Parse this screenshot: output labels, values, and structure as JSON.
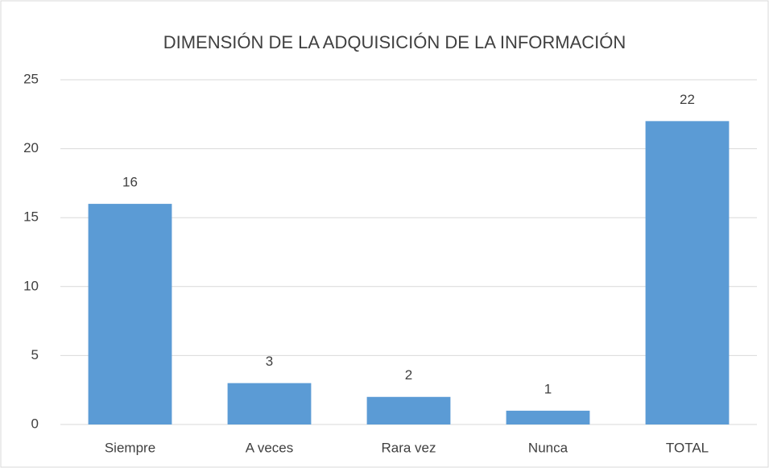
{
  "chart_data": {
    "type": "bar",
    "title": "DIMENSIÓN DE LA ADQUISICIÓN DE LA INFORMACIÓN",
    "categories": [
      "Siempre",
      "A veces",
      "Rara vez",
      "Nunca",
      "TOTAL"
    ],
    "values": [
      16,
      3,
      2,
      1,
      22
    ],
    "color": "#5b9bd5",
    "ylim": [
      0,
      25
    ],
    "yticks": [
      0,
      5,
      10,
      15,
      20,
      25
    ],
    "grid": true,
    "data_labels": true
  }
}
